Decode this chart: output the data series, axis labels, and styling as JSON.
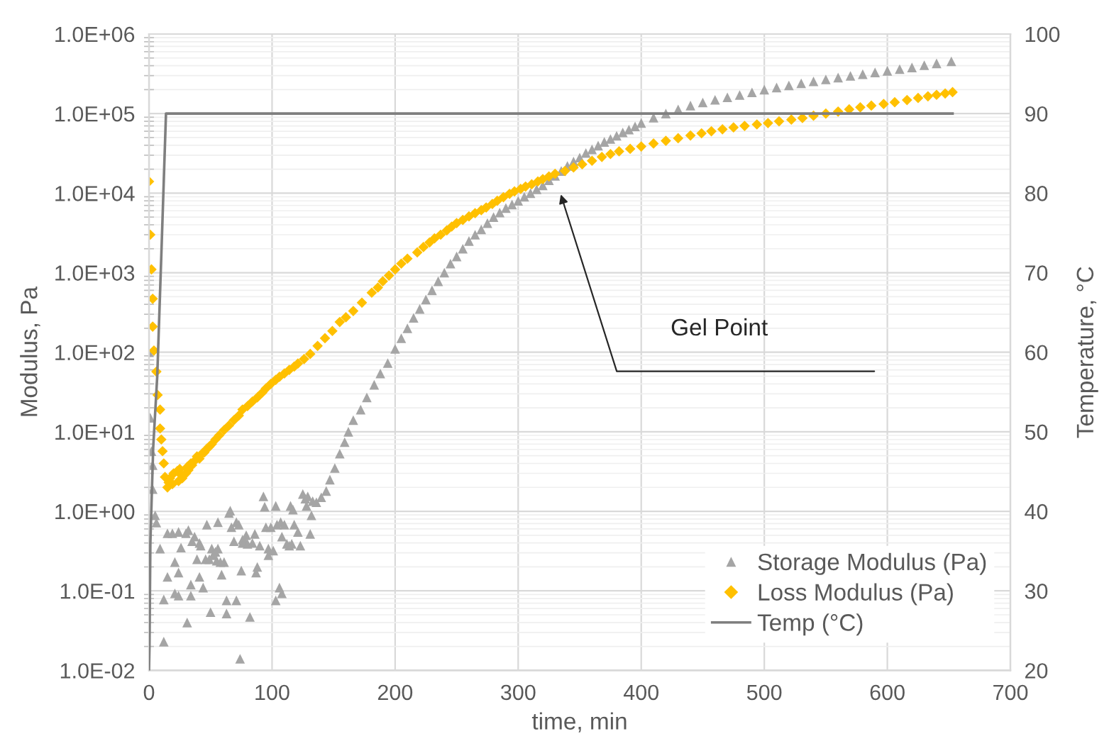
{
  "chart_data": {
    "type": "scatter",
    "xlabel": "time, min",
    "ylabel": "Modulus, Pa",
    "y2label": "Temperature, °C",
    "log": "y",
    "grid": true,
    "legend": "bottom right",
    "xlim": [
      0,
      700
    ],
    "xticks": [
      0,
      100,
      200,
      300,
      400,
      500,
      600,
      700
    ],
    "ylim": [
      0.01,
      1000000
    ],
    "yticks": [
      {
        "value": 0.01,
        "label": "1.0E-02"
      },
      {
        "value": 0.1,
        "label": "1.0E-01"
      },
      {
        "value": 1,
        "label": "1.0E+00"
      },
      {
        "value": 10,
        "label": "1.0E+01"
      },
      {
        "value": 100,
        "label": "1.0E+02"
      },
      {
        "value": 1000,
        "label": "1.0E+03"
      },
      {
        "value": 10000,
        "label": "1.0E+04"
      },
      {
        "value": 100000,
        "label": "1.0E+05"
      },
      {
        "value": 1000000,
        "label": "1.0E+06"
      }
    ],
    "y2lim": [
      20,
      100
    ],
    "y2ticks": [
      20,
      30,
      40,
      50,
      60,
      70,
      80,
      90,
      100
    ],
    "annotations": [
      "Gel Point"
    ],
    "series": [
      {
        "name": "Storage Modulus (Pa)",
        "marker": "triangle",
        "color": "#a5a5a5",
        "x": [
          0,
          1,
          2,
          3,
          3,
          5,
          6,
          9,
          15,
          12,
          15,
          19,
          21,
          24,
          21,
          24,
          12,
          26,
          24,
          30,
          32,
          31,
          34,
          35,
          34,
          37,
          39,
          41,
          41,
          42,
          44,
          47,
          46,
          49,
          50,
          51,
          52,
          54,
          55,
          56,
          56,
          58,
          59,
          61,
          63,
          63,
          65,
          66,
          67,
          69,
          71,
          71,
          73,
          74,
          75,
          76,
          76,
          78,
          79,
          80,
          82,
          84,
          86,
          87,
          88,
          90,
          93,
          94,
          95,
          97,
          97,
          99,
          101,
          103,
          103,
          104,
          106,
          107,
          108,
          108,
          110,
          112,
          114,
          115,
          116,
          117,
          118,
          121,
          123,
          125,
          127,
          128,
          129,
          131,
          132,
          133,
          136,
          140,
          144,
          147,
          151,
          155,
          159,
          162,
          166,
          172,
          177,
          183,
          188,
          194,
          200,
          205,
          210,
          215,
          220,
          225,
          230,
          235,
          240,
          245,
          250,
          255,
          260,
          265,
          270,
          275,
          280,
          285,
          290,
          295,
          300,
          305,
          310,
          315,
          320,
          325,
          330,
          335,
          340,
          345,
          350,
          355,
          360,
          365,
          370,
          375,
          380,
          385,
          390,
          395,
          400,
          410,
          420,
          430,
          440,
          450,
          460,
          470,
          480,
          490,
          500,
          510,
          520,
          530,
          540,
          550,
          560,
          570,
          580,
          590,
          600,
          610,
          620,
          630,
          640,
          652
        ],
        "values": [
          100,
          15,
          5.7,
          3.8,
          1.9,
          0.89,
          0.72,
          0.34,
          0.15,
          0.078,
          0.53,
          0.53,
          0.23,
          0.55,
          0.093,
          0.087,
          0.023,
          0.35,
          0.17,
          0.53,
          0.58,
          0.04,
          0.087,
          0.42,
          0.12,
          0.48,
          0.25,
          0.4,
          0.15,
          0.37,
          0.11,
          0.68,
          0.25,
          0.25,
          0.054,
          0.34,
          0.28,
          0.31,
          0.24,
          0.73,
          0.34,
          0.23,
          0.16,
          0.23,
          0.076,
          0.052,
          0.95,
          1.02,
          0.63,
          0.42,
          0.076,
          0.73,
          0.68,
          0.014,
          0.18,
          0.4,
          0.44,
          0.42,
          0.5,
          0.39,
          0.047,
          0.4,
          0.52,
          0.17,
          0.2,
          0.37,
          1.54,
          1.14,
          0.63,
          0.34,
          0.28,
          0.63,
          0.32,
          1.17,
          0.076,
          0.68,
          0.11,
          0.73,
          0.48,
          0.093,
          0.68,
          0.39,
          0.37,
          1.17,
          0.39,
          1.05,
          0.68,
          0.55,
          0.37,
          1.65,
          1.44,
          1.17,
          1.54,
          0.52,
          0.89,
          1.34,
          1.3,
          1.5,
          1.8,
          2.5,
          3.5,
          5.3,
          7.4,
          10,
          14,
          19,
          27,
          39,
          54,
          73,
          110,
          150,
          200,
          270,
          350,
          460,
          600,
          780,
          1000,
          1300,
          1600,
          2000,
          2500,
          3000,
          3500,
          4200,
          5000,
          5700,
          6500,
          7200,
          8000,
          9000,
          10000,
          11200,
          12500,
          14500,
          16500,
          19000,
          22000,
          25000,
          28000,
          32000,
          35500,
          39500,
          44000,
          48000,
          52500,
          58000,
          63000,
          69000,
          76000,
          89000,
          100000,
          113000,
          126000,
          138000,
          149000,
          160000,
          171000,
          185000,
          200000,
          213000,
          226000,
          240000,
          254000,
          269000,
          284000,
          298000,
          313000,
          329000,
          345000,
          362000,
          380000,
          405000,
          428000,
          454000
        ]
      },
      {
        "name": "Loss Modulus (Pa)",
        "marker": "diamond",
        "color": "#ffc000",
        "x": [
          0,
          1,
          2,
          3,
          3,
          4,
          6,
          7,
          9,
          9,
          10,
          11,
          12,
          13,
          15,
          16,
          17,
          19,
          20,
          23,
          24,
          25,
          26,
          27,
          30,
          31,
          32,
          34,
          35,
          37,
          39,
          41,
          43,
          45,
          47,
          49,
          51,
          54,
          57,
          61,
          65,
          69,
          73,
          76,
          80,
          84,
          88,
          92,
          95,
          99,
          103,
          106,
          110,
          114,
          118,
          121,
          126,
          131,
          137,
          143,
          149,
          155,
          160,
          166,
          173,
          181,
          186,
          190,
          195,
          200,
          205,
          210,
          218,
          223,
          228,
          232,
          237,
          242,
          246,
          250,
          255,
          260,
          265,
          270,
          274,
          279,
          283,
          288,
          293,
          297,
          302,
          306,
          311,
          316,
          320,
          325,
          330,
          338,
          345,
          352,
          360,
          368,
          375,
          382,
          391,
          400,
          410,
          420,
          430,
          440,
          449,
          457,
          466,
          475,
          484,
          494,
          503,
          512,
          522,
          531,
          540,
          550,
          560,
          569,
          578,
          587,
          597,
          606,
          616,
          625,
          633,
          640,
          647,
          653
        ],
        "values": [
          14000,
          3000,
          1100,
          470,
          210,
          105,
          57,
          29,
          19,
          11,
          8,
          5.7,
          4,
          2.7,
          2,
          2.3,
          2.6,
          2.2,
          3,
          3.2,
          2.4,
          3.4,
          2.9,
          2.6,
          3,
          3.6,
          3.3,
          4,
          3.8,
          4.3,
          4.9,
          4.6,
          5.3,
          5.5,
          6.1,
          6.5,
          7,
          8,
          9,
          10.5,
          12,
          14,
          16,
          19,
          21,
          24,
          27,
          31,
          35,
          40,
          45,
          49,
          54,
          60,
          66,
          72,
          82,
          95,
          120,
          150,
          185,
          240,
          275,
          330,
          420,
          560,
          650,
          780,
          920,
          1100,
          1300,
          1500,
          1800,
          2100,
          2400,
          2700,
          3000,
          3400,
          3800,
          4200,
          4600,
          5100,
          5600,
          6100,
          6600,
          7300,
          8000,
          8900,
          9800,
          10500,
          11300,
          12100,
          12900,
          14000,
          15000,
          16200,
          17500,
          19000,
          21000,
          23000,
          25500,
          28500,
          31000,
          33500,
          36000,
          38600,
          42000,
          45500,
          49000,
          53000,
          56500,
          60000,
          63500,
          67000,
          70000,
          73000,
          76000,
          80000,
          84000,
          88000,
          94000,
          100000,
          106000,
          113000,
          120000,
          126000,
          132000,
          139000,
          148000,
          157000,
          165000,
          172000,
          179000,
          186000
        ]
      },
      {
        "name": "Temp (°C)",
        "type": "line",
        "marker": "none",
        "axis": "y2",
        "color": "#7f7f7f",
        "x": [
          0,
          0.4,
          1.1,
          3.4,
          6.7,
          10.4,
          13.8,
          653
        ],
        "values": [
          20,
          23,
          36,
          48,
          57,
          74,
          90,
          90
        ]
      }
    ]
  }
}
